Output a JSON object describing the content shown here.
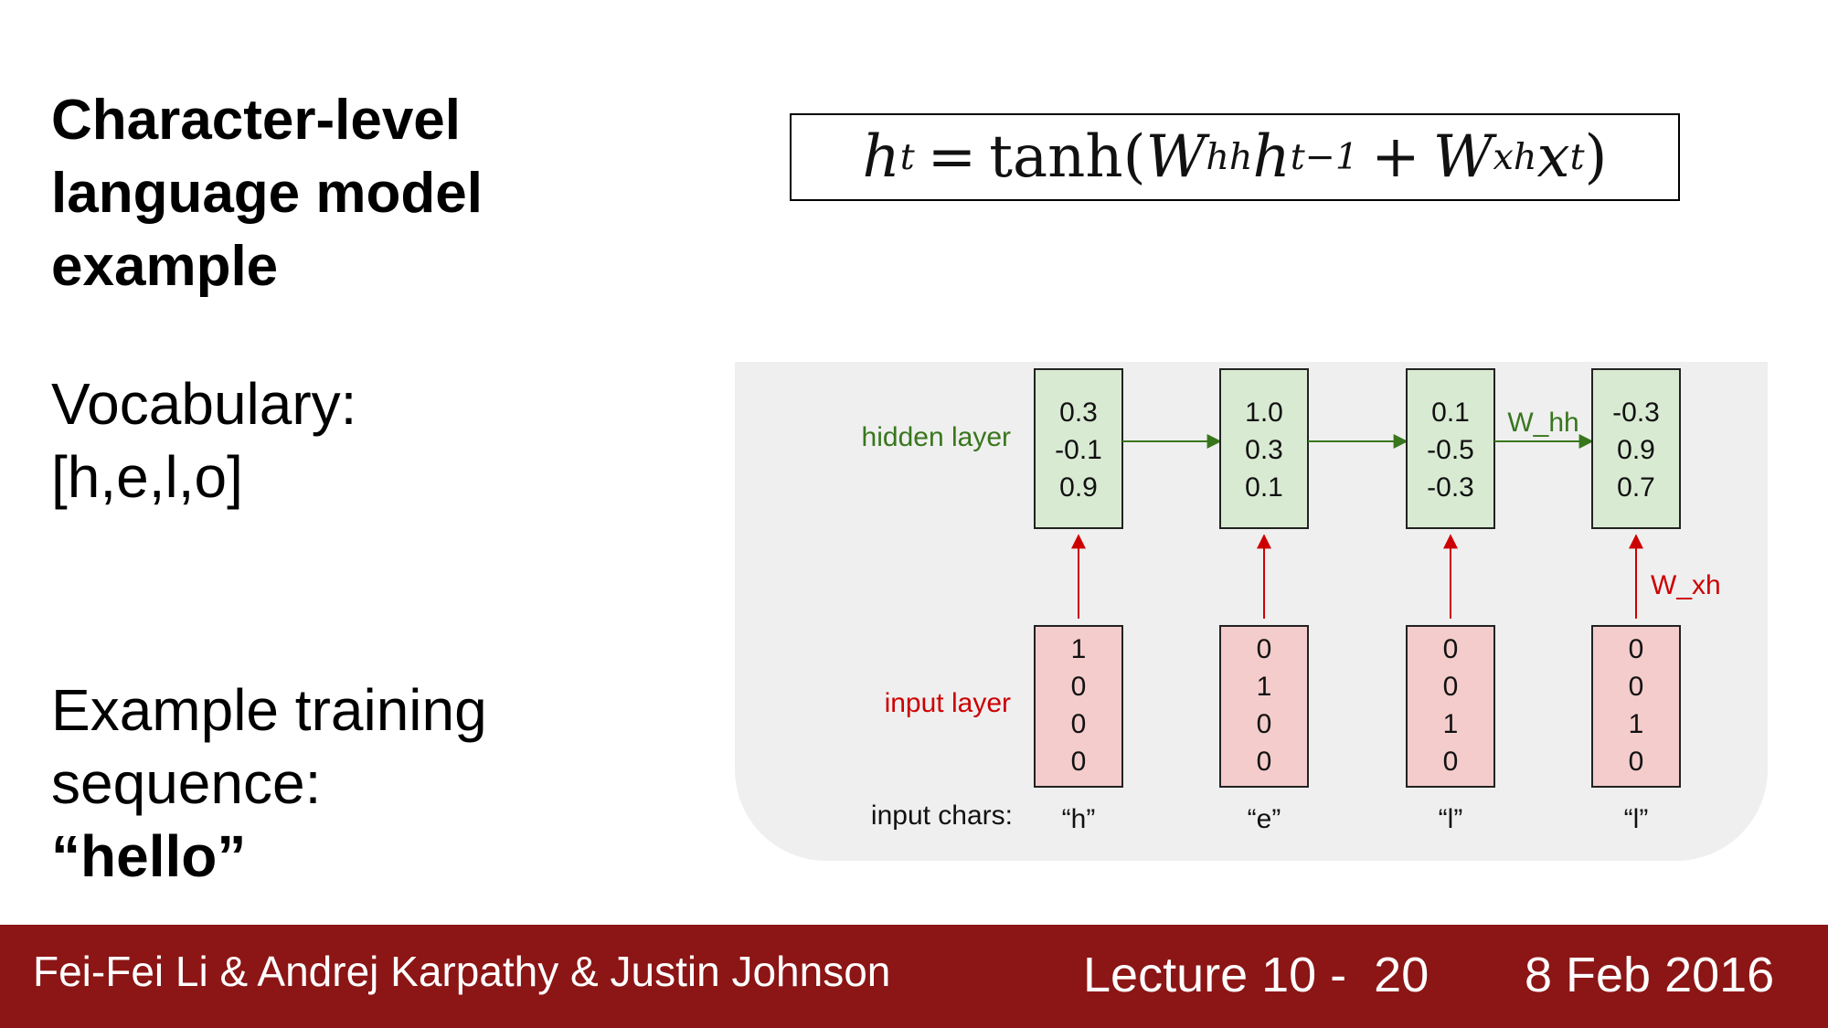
{
  "slide": {
    "title_lines": [
      "Character-level",
      "language model",
      "example"
    ],
    "vocabulary_label": "Vocabulary:",
    "vocabulary_value": "[h,e,l,o]",
    "training_line1": "Example training",
    "training_line2": "sequence:",
    "training_word": "“hello”"
  },
  "equation": {
    "lhs": "h",
    "lhs_sub": "t",
    "equals": "=",
    "func": "tanh(",
    "w1": "W",
    "w1_sub": "hh",
    "h_prev": "h",
    "h_prev_sub": "t−1",
    "plus": "+",
    "w2": "W",
    "w2_sub": "xh",
    "x": "x",
    "x_sub": "t",
    "close": ")"
  },
  "diagram": {
    "hidden_label": "hidden layer",
    "input_label": "input layer",
    "chars_label": "input chars:",
    "whh_label": "W_hh",
    "wxh_label": "W_xh",
    "colors": {
      "hidden_fill": "#d9ead3",
      "hidden_stroke": "#222222",
      "input_fill": "#f4cccc",
      "input_stroke": "#222222",
      "green": "#38761d",
      "red": "#cc0000",
      "panel": "#efefef"
    },
    "steps": [
      {
        "hidden": [
          "0.3",
          "-0.1",
          "0.9"
        ],
        "input": [
          "1",
          "0",
          "0",
          "0"
        ],
        "char": "“h”"
      },
      {
        "hidden": [
          "1.0",
          "0.3",
          "0.1"
        ],
        "input": [
          "0",
          "1",
          "0",
          "0"
        ],
        "char": "“e”"
      },
      {
        "hidden": [
          "0.1",
          "-0.5",
          "-0.3"
        ],
        "input": [
          "0",
          "0",
          "1",
          "0"
        ],
        "char": "“l”"
      },
      {
        "hidden": [
          "-0.3",
          "0.9",
          "0.7"
        ],
        "input": [
          "0",
          "0",
          "1",
          "0"
        ],
        "char": "“l”"
      }
    ]
  },
  "footer": {
    "authors": "Fei-Fei Li & Andrej Karpathy & Justin Johnson",
    "lecture": "Lecture 10 -  20",
    "date": "8 Feb 2016",
    "background": "#8c1515"
  }
}
